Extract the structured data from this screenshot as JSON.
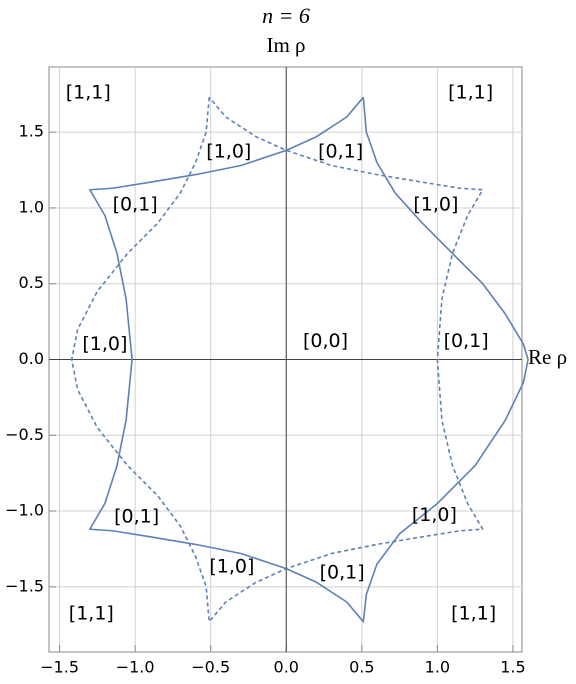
{
  "chart_data": {
    "type": "line",
    "title": "n = 6",
    "ylabel": "Im ρ",
    "xlabel": "Re ρ",
    "xlim": [
      -1.57,
      1.56
    ],
    "ylim": [
      -1.93,
      1.93
    ],
    "xticks": [
      {
        "value": -1.5,
        "label": "−1.5"
      },
      {
        "value": -1,
        "label": "−1.0"
      },
      {
        "value": -0.5,
        "label": "−0.5"
      },
      {
        "value": 0,
        "label": "0.0"
      },
      0.5,
      {
        "value": 1,
        "label": "1.0"
      },
      1.5
    ],
    "yticks": [
      {
        "value": -1.5,
        "label": "−1.5"
      },
      {
        "value": -1,
        "label": "−1.0"
      },
      {
        "value": -0.5,
        "label": "−0.5"
      },
      {
        "value": 0,
        "label": "0.0"
      },
      0.5,
      {
        "value": 1,
        "label": "1.0"
      },
      1.5
    ],
    "grid": true,
    "series": [
      {
        "color": "#5e81b5",
        "dashed": false,
        "x": [
          0.51,
          0.53,
          0.6,
          0.72,
          0.9,
          1.1,
          1.3,
          1.45,
          1.57,
          1.6,
          1.57,
          1.45,
          1.25,
          1.0,
          0.75,
          0.6,
          0.53,
          0.51,
          0.4,
          0.2,
          0,
          -0.3,
          -0.6,
          -0.9,
          -1.15,
          -1.3,
          -1.2,
          -1.12,
          -1.06,
          -1.02,
          -1.06,
          -1.12,
          -1.2,
          -1.3,
          -1.15,
          -0.9,
          -0.6,
          -0.3,
          0,
          0.2,
          0.4,
          0.51
        ],
        "values": [
          1.73,
          1.5,
          1.3,
          1.1,
          0.9,
          0.7,
          0.5,
          0.3,
          0.1,
          0,
          -0.15,
          -0.4,
          -0.7,
          -0.95,
          -1.15,
          -1.35,
          -1.55,
          -1.73,
          -1.6,
          -1.47,
          -1.38,
          -1.28,
          -1.22,
          -1.17,
          -1.13,
          -1.12,
          -0.95,
          -0.7,
          -0.4,
          0,
          0.4,
          0.7,
          0.95,
          1.12,
          1.13,
          1.17,
          1.22,
          1.28,
          1.38,
          1.47,
          1.6,
          1.73
        ]
      },
      {
        "color": "#5e81b5",
        "dashed": true,
        "x": [
          -0.51,
          -0.53,
          -0.6,
          -0.7,
          -0.85,
          -1.05,
          -1.25,
          -1.38,
          -1.42,
          -1.38,
          -1.25,
          -1.05,
          -0.85,
          -0.7,
          -0.6,
          -0.53,
          -0.51,
          -0.4,
          -0.2,
          0,
          0.3,
          0.6,
          0.9,
          1.15,
          1.3,
          1.2,
          1.1,
          1.03,
          1.0,
          1.03,
          1.1,
          1.2,
          1.3,
          1.15,
          0.9,
          0.6,
          0.3,
          0,
          -0.2,
          -0.4,
          -0.51
        ],
        "values": [
          1.73,
          1.5,
          1.3,
          1.1,
          0.9,
          0.7,
          0.45,
          0.2,
          0,
          -0.2,
          -0.45,
          -0.7,
          -0.9,
          -1.1,
          -1.3,
          -1.5,
          -1.73,
          -1.6,
          -1.47,
          -1.38,
          -1.28,
          -1.22,
          -1.17,
          -1.13,
          -1.12,
          -0.95,
          -0.7,
          -0.4,
          0,
          0.4,
          0.7,
          0.95,
          1.12,
          1.13,
          1.17,
          1.22,
          1.28,
          1.38,
          1.47,
          1.6,
          1.73
        ]
      }
    ],
    "annotations": [
      "[1,1]",
      "[1,1]",
      "[1,0]",
      "[0,1]",
      "[0,1]",
      "[1,0]",
      "[1,0]",
      "[0,0]",
      "[0,1]",
      "[0,1]",
      "[1,0]",
      "[1,0]",
      "[0,1]",
      "[1,1]",
      "[1,1]"
    ]
  }
}
